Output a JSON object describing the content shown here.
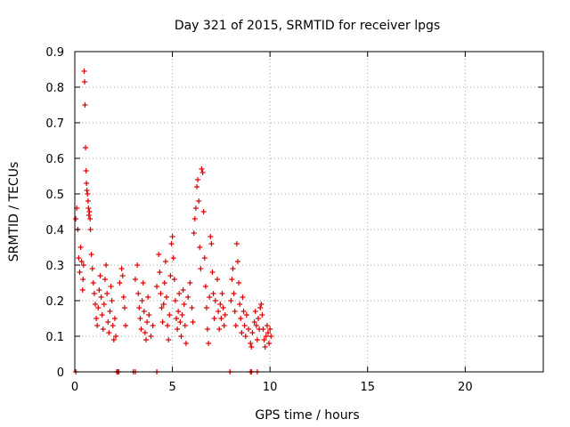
{
  "chart_data": {
    "type": "scatter",
    "title": "Day 321 of 2015, SRMTID for receiver lpgs",
    "xlabel": "GPS time / hours",
    "ylabel": "SRMTID / TECUs",
    "xlim": [
      0,
      24
    ],
    "ylim": [
      0,
      0.9
    ],
    "grid": true,
    "marker": "plus",
    "color": "#e00000",
    "xticks": [
      0,
      5,
      10,
      15,
      20
    ],
    "xtick_labels": [
      "0",
      "5",
      "10",
      "15",
      "20"
    ],
    "yticks": [
      0,
      0.1,
      0.2,
      0.3,
      0.4,
      0.5,
      0.6,
      0.7,
      0.8,
      0.9
    ],
    "ytick_labels": [
      "0",
      "0.1",
      "0.2",
      "0.3",
      "0.4",
      "0.5",
      "0.6",
      "0.7",
      "0.8",
      "0.9"
    ],
    "series": [
      {
        "name": "SRMTID",
        "points": [
          [
            0.05,
            0.43
          ],
          [
            0.1,
            0.46
          ],
          [
            0.15,
            0.4
          ],
          [
            0.2,
            0.32
          ],
          [
            0.25,
            0.28
          ],
          [
            0.3,
            0.35
          ],
          [
            0.35,
            0.31
          ],
          [
            0.4,
            0.23
          ],
          [
            0.42,
            0.26
          ],
          [
            0.45,
            0.3
          ],
          [
            0.48,
            0.845
          ],
          [
            0.5,
            0.815
          ],
          [
            0.52,
            0.75
          ],
          [
            0.55,
            0.63
          ],
          [
            0.58,
            0.565
          ],
          [
            0.6,
            0.53
          ],
          [
            0.62,
            0.51
          ],
          [
            0.65,
            0.5
          ],
          [
            0.68,
            0.48
          ],
          [
            0.7,
            0.46
          ],
          [
            0.72,
            0.44
          ],
          [
            0.75,
            0.45
          ],
          [
            0.78,
            0.43
          ],
          [
            0.8,
            0.4
          ],
          [
            0.85,
            0.33
          ],
          [
            0.9,
            0.29
          ],
          [
            0.95,
            0.25
          ],
          [
            1.0,
            0.22
          ],
          [
            1.05,
            0.19
          ],
          [
            1.1,
            0.15
          ],
          [
            1.15,
            0.13
          ],
          [
            1.2,
            0.18
          ],
          [
            1.25,
            0.23
          ],
          [
            1.3,
            0.27
          ],
          [
            1.35,
            0.21
          ],
          [
            1.4,
            0.16
          ],
          [
            1.45,
            0.12
          ],
          [
            1.5,
            0.19
          ],
          [
            1.55,
            0.26
          ],
          [
            1.6,
            0.3
          ],
          [
            1.65,
            0.22
          ],
          [
            1.7,
            0.14
          ],
          [
            1.75,
            0.11
          ],
          [
            1.8,
            0.17
          ],
          [
            1.85,
            0.24
          ],
          [
            1.9,
            0.2
          ],
          [
            1.95,
            0.13
          ],
          [
            2.0,
            0.09
          ],
          [
            2.05,
            0.15
          ],
          [
            2.1,
            0.1
          ],
          [
            2.3,
            0.25
          ],
          [
            2.4,
            0.29
          ],
          [
            2.45,
            0.27
          ],
          [
            2.5,
            0.21
          ],
          [
            2.55,
            0.18
          ],
          [
            2.6,
            0.13
          ],
          [
            3.1,
            0.26
          ],
          [
            3.2,
            0.3
          ],
          [
            3.25,
            0.22
          ],
          [
            3.3,
            0.18
          ],
          [
            3.35,
            0.15
          ],
          [
            3.4,
            0.12
          ],
          [
            3.45,
            0.2
          ],
          [
            3.5,
            0.25
          ],
          [
            3.55,
            0.17
          ],
          [
            3.6,
            0.11
          ],
          [
            3.65,
            0.09
          ],
          [
            3.7,
            0.14
          ],
          [
            3.75,
            0.21
          ],
          [
            3.8,
            0.16
          ],
          [
            3.9,
            0.1
          ],
          [
            4.0,
            0.13
          ],
          [
            4.2,
            0.24
          ],
          [
            4.3,
            0.33
          ],
          [
            4.35,
            0.28
          ],
          [
            4.4,
            0.22
          ],
          [
            4.45,
            0.18
          ],
          [
            4.5,
            0.14
          ],
          [
            4.55,
            0.19
          ],
          [
            4.6,
            0.25
          ],
          [
            4.65,
            0.31
          ],
          [
            4.7,
            0.21
          ],
          [
            4.75,
            0.13
          ],
          [
            4.8,
            0.09
          ],
          [
            4.85,
            0.16
          ],
          [
            4.9,
            0.27
          ],
          [
            4.95,
            0.36
          ],
          [
            5.0,
            0.38
          ],
          [
            5.05,
            0.32
          ],
          [
            5.1,
            0.26
          ],
          [
            5.15,
            0.2
          ],
          [
            5.2,
            0.15
          ],
          [
            5.25,
            0.12
          ],
          [
            5.3,
            0.17
          ],
          [
            5.35,
            0.22
          ],
          [
            5.4,
            0.14
          ],
          [
            5.45,
            0.1
          ],
          [
            5.5,
            0.16
          ],
          [
            5.55,
            0.23
          ],
          [
            5.6,
            0.19
          ],
          [
            5.65,
            0.13
          ],
          [
            5.7,
            0.08
          ],
          [
            5.8,
            0.21
          ],
          [
            5.9,
            0.25
          ],
          [
            6.0,
            0.18
          ],
          [
            6.05,
            0.14
          ],
          [
            6.1,
            0.39
          ],
          [
            6.15,
            0.43
          ],
          [
            6.2,
            0.46
          ],
          [
            6.25,
            0.52
          ],
          [
            6.3,
            0.54
          ],
          [
            6.35,
            0.48
          ],
          [
            6.4,
            0.35
          ],
          [
            6.45,
            0.29
          ],
          [
            6.5,
            0.57
          ],
          [
            6.55,
            0.56
          ],
          [
            6.6,
            0.45
          ],
          [
            6.65,
            0.32
          ],
          [
            6.7,
            0.24
          ],
          [
            6.75,
            0.18
          ],
          [
            6.8,
            0.12
          ],
          [
            6.85,
            0.08
          ],
          [
            6.9,
            0.21
          ],
          [
            6.95,
            0.38
          ],
          [
            7.0,
            0.36
          ],
          [
            7.05,
            0.28
          ],
          [
            7.1,
            0.22
          ],
          [
            7.15,
            0.15
          ],
          [
            7.2,
            0.2
          ],
          [
            7.3,
            0.26
          ],
          [
            7.35,
            0.17
          ],
          [
            7.4,
            0.12
          ],
          [
            7.45,
            0.19
          ],
          [
            7.5,
            0.15
          ],
          [
            7.55,
            0.22
          ],
          [
            7.6,
            0.18
          ],
          [
            7.65,
            0.13
          ],
          [
            7.7,
            0.16
          ],
          [
            8.0,
            0.2
          ],
          [
            8.05,
            0.26
          ],
          [
            8.1,
            0.29
          ],
          [
            8.15,
            0.22
          ],
          [
            8.2,
            0.17
          ],
          [
            8.25,
            0.13
          ],
          [
            8.3,
            0.36
          ],
          [
            8.35,
            0.31
          ],
          [
            8.4,
            0.25
          ],
          [
            8.45,
            0.19
          ],
          [
            8.5,
            0.15
          ],
          [
            8.55,
            0.11
          ],
          [
            8.6,
            0.21
          ],
          [
            8.65,
            0.17
          ],
          [
            8.7,
            0.13
          ],
          [
            8.75,
            0.1
          ],
          [
            8.8,
            0.16
          ],
          [
            8.9,
            0.12
          ],
          [
            9.0,
            0.08
          ],
          [
            9.05,
            0.07
          ],
          [
            9.1,
            0.11
          ],
          [
            9.2,
            0.14
          ],
          [
            9.25,
            0.17
          ],
          [
            9.3,
            0.13
          ],
          [
            9.35,
            0.09
          ],
          [
            9.4,
            0.15
          ],
          [
            9.45,
            0.12
          ],
          [
            9.5,
            0.18
          ],
          [
            9.55,
            0.19
          ],
          [
            9.6,
            0.16
          ],
          [
            9.65,
            0.12
          ],
          [
            9.7,
            0.09
          ],
          [
            9.75,
            0.07
          ],
          [
            9.8,
            0.1
          ],
          [
            9.85,
            0.13
          ],
          [
            9.9,
            0.11
          ],
          [
            9.95,
            0.08
          ],
          [
            10.0,
            0.12
          ],
          [
            10.05,
            0.1
          ],
          [
            0.05,
            0.0
          ],
          [
            2.15,
            0.0
          ],
          [
            2.2,
            0.0
          ],
          [
            2.25,
            0.0
          ],
          [
            3.0,
            0.0
          ],
          [
            3.1,
            0.0
          ],
          [
            4.2,
            0.0
          ],
          [
            7.95,
            0.0
          ],
          [
            9.0,
            0.0
          ],
          [
            9.05,
            0.0
          ],
          [
            9.35,
            0.0
          ]
        ]
      }
    ]
  }
}
